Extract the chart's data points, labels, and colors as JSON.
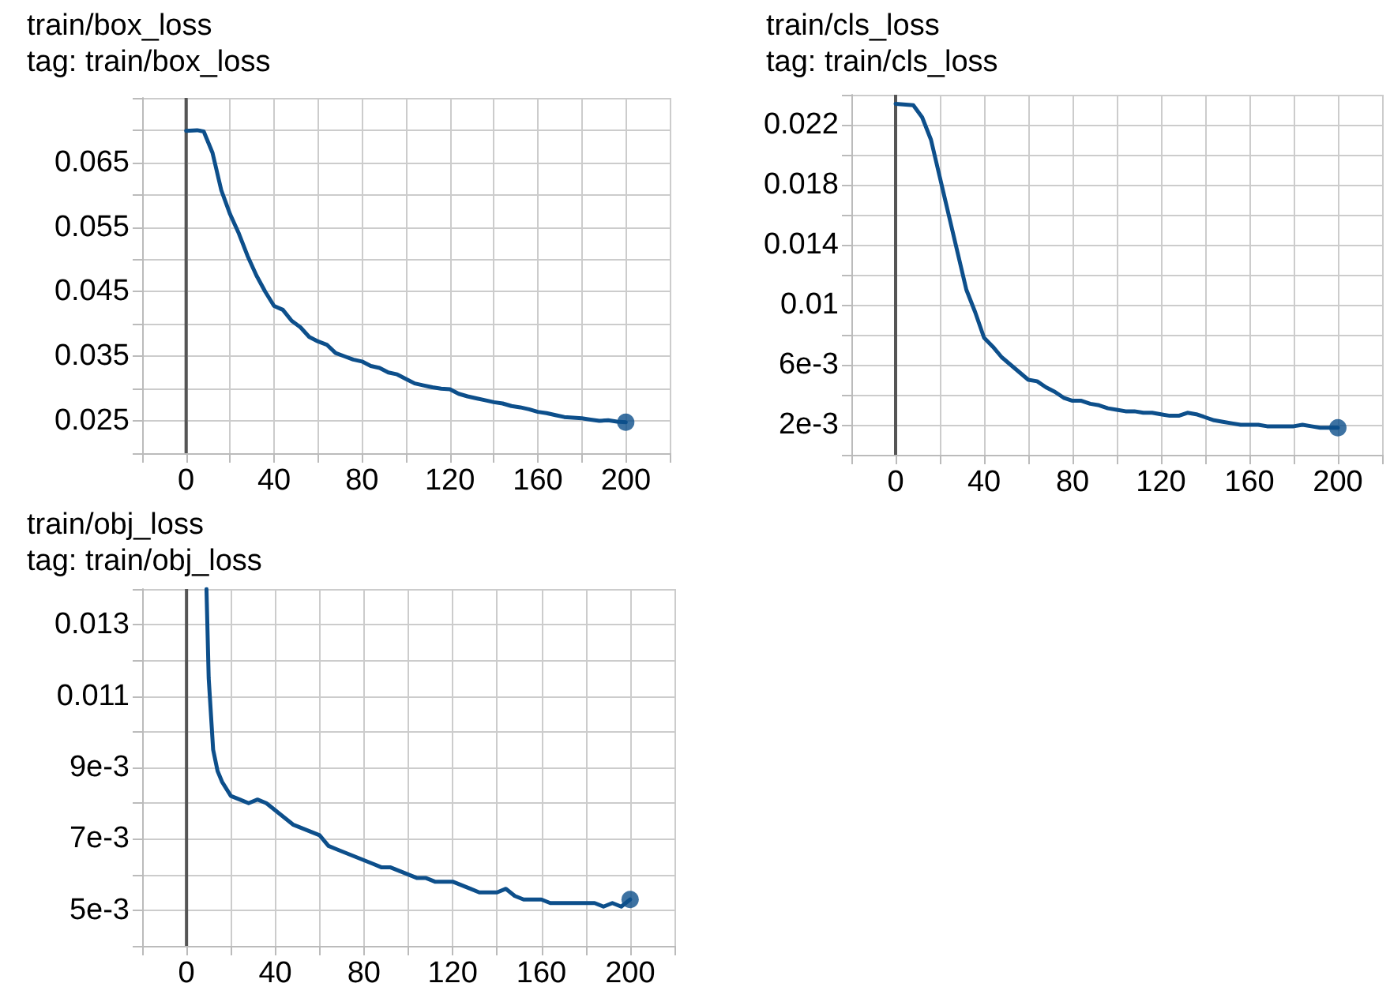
{
  "chart_data": [
    {
      "type": "line",
      "title": "train/box_loss",
      "subtitle": "tag: train/box_loss",
      "grid": true,
      "marker": "none",
      "line_style": "solid",
      "xlim": [
        -20,
        220
      ],
      "ylim": [
        0.02,
        0.075
      ],
      "xticks": [
        {
          "value": -20,
          "label": null
        },
        0,
        {
          "value": 20,
          "label": null
        },
        40,
        {
          "value": 60,
          "label": null
        },
        80,
        {
          "value": 100,
          "label": null
        },
        120,
        {
          "value": 140,
          "label": null
        },
        160,
        {
          "value": 180,
          "label": null
        },
        200,
        {
          "value": 220,
          "label": null
        }
      ],
      "yticks": [
        {
          "value": 0.02,
          "label": null
        },
        0.025,
        {
          "value": 0.03,
          "label": null
        },
        0.035,
        {
          "value": 0.04,
          "label": null
        },
        0.045,
        {
          "value": 0.05,
          "label": null
        },
        0.055,
        {
          "value": 0.06,
          "label": null
        },
        0.065,
        {
          "value": 0.07,
          "label": null
        },
        {
          "value": 0.075,
          "label": null
        }
      ],
      "ref_lines": [
        {
          "axis": "x",
          "value": 0,
          "color": "#555555"
        }
      ],
      "series": [
        {
          "type": "line",
          "color": "#0d4f8b",
          "x": [
            0,
            5,
            8,
            12,
            16,
            20,
            24,
            28,
            32,
            36,
            40,
            44,
            48,
            52,
            56,
            60,
            64,
            68,
            72,
            76,
            80,
            84,
            88,
            92,
            96,
            100,
            104,
            108,
            112,
            116,
            120,
            124,
            128,
            132,
            136,
            140,
            144,
            148,
            152,
            156,
            160,
            164,
            168,
            172,
            176,
            180,
            184,
            188,
            192,
            196,
            200
          ],
          "values": [
            0.0699,
            0.07,
            0.0698,
            0.0665,
            0.0607,
            0.057,
            0.054,
            0.0505,
            0.0475,
            0.045,
            0.0428,
            0.0422,
            0.0405,
            0.0395,
            0.038,
            0.0373,
            0.0368,
            0.0355,
            0.035,
            0.0345,
            0.0342,
            0.0335,
            0.0332,
            0.0325,
            0.0322,
            0.0315,
            0.0308,
            0.0305,
            0.0302,
            0.03,
            0.0299,
            0.0292,
            0.0288,
            0.0285,
            0.0282,
            0.0279,
            0.0277,
            0.0273,
            0.0271,
            0.0268,
            0.0264,
            0.0262,
            0.0259,
            0.0256,
            0.0255,
            0.0254,
            0.0252,
            0.025,
            0.0251,
            0.0249,
            0.0248
          ]
        },
        {
          "type": "scatter",
          "color": "#0d4f8b",
          "marker": "circle",
          "x": [
            200
          ],
          "values": [
            0.0248
          ]
        }
      ]
    },
    {
      "type": "line",
      "title": "train/cls_loss",
      "subtitle": "tag: train/cls_loss",
      "grid": true,
      "marker": "none",
      "line_style": "solid",
      "xlim": [
        -20,
        220
      ],
      "ylim": [
        0,
        0.024
      ],
      "xticks": [
        {
          "value": -20,
          "label": null
        },
        0,
        {
          "value": 20,
          "label": null
        },
        40,
        {
          "value": 60,
          "label": null
        },
        80,
        {
          "value": 100,
          "label": null
        },
        120,
        {
          "value": 140,
          "label": null
        },
        160,
        {
          "value": 180,
          "label": null
        },
        200,
        {
          "value": 220,
          "label": null
        }
      ],
      "yticks": [
        {
          "value": 0,
          "label": null
        },
        {
          "value": 0.002,
          "label": "2e-3"
        },
        {
          "value": 0.004,
          "label": null
        },
        {
          "value": 0.006,
          "label": "6e-3"
        },
        {
          "value": 0.008,
          "label": null
        },
        0.01,
        {
          "value": 0.012,
          "label": null
        },
        0.014,
        {
          "value": 0.016,
          "label": null
        },
        0.018,
        {
          "value": 0.02,
          "label": null
        },
        0.022,
        {
          "value": 0.024,
          "label": null
        }
      ],
      "ref_lines": [
        {
          "axis": "x",
          "value": 0,
          "color": "#555555"
        }
      ],
      "series": [
        {
          "type": "line",
          "color": "#0d4f8b",
          "x": [
            0,
            8,
            12,
            16,
            20,
            24,
            28,
            32,
            36,
            40,
            44,
            48,
            52,
            56,
            60,
            64,
            68,
            72,
            76,
            80,
            84,
            88,
            92,
            96,
            100,
            104,
            108,
            112,
            116,
            120,
            124,
            128,
            132,
            136,
            140,
            144,
            148,
            152,
            156,
            160,
            164,
            168,
            172,
            176,
            180,
            184,
            188,
            192,
            196,
            200
          ],
          "values": [
            0.0234,
            0.0233,
            0.0225,
            0.021,
            0.0185,
            0.016,
            0.0135,
            0.011,
            0.0095,
            0.0078,
            0.0072,
            0.0065,
            0.006,
            0.0055,
            0.005,
            0.0049,
            0.0045,
            0.0042,
            0.0038,
            0.0036,
            0.0036,
            0.0034,
            0.0033,
            0.0031,
            0.003,
            0.0029,
            0.0029,
            0.0028,
            0.0028,
            0.0027,
            0.0026,
            0.0026,
            0.0028,
            0.0027,
            0.0025,
            0.0023,
            0.0022,
            0.0021,
            0.002,
            0.002,
            0.002,
            0.0019,
            0.0019,
            0.0019,
            0.0019,
            0.002,
            0.0019,
            0.0018,
            0.0018,
            0.0018
          ]
        },
        {
          "type": "scatter",
          "color": "#0d4f8b",
          "marker": "circle",
          "x": [
            200
          ],
          "values": [
            0.0018
          ]
        }
      ]
    },
    {
      "type": "line",
      "title": "train/obj_loss",
      "subtitle": "tag: train/obj_loss",
      "grid": true,
      "marker": "none",
      "line_style": "solid",
      "xlim": [
        -20,
        220
      ],
      "ylim": [
        0.004,
        0.014
      ],
      "xticks": [
        {
          "value": -20,
          "label": null
        },
        0,
        {
          "value": 20,
          "label": null
        },
        40,
        {
          "value": 60,
          "label": null
        },
        80,
        {
          "value": 100,
          "label": null
        },
        120,
        {
          "value": 140,
          "label": null
        },
        160,
        {
          "value": 180,
          "label": null
        },
        200,
        {
          "value": 220,
          "label": null
        }
      ],
      "yticks": [
        {
          "value": 0.004,
          "label": null
        },
        {
          "value": 0.005,
          "label": "5e-3"
        },
        {
          "value": 0.006,
          "label": null
        },
        {
          "value": 0.007,
          "label": "7e-3"
        },
        {
          "value": 0.008,
          "label": null
        },
        {
          "value": 0.009,
          "label": "9e-3"
        },
        {
          "value": 0.01,
          "label": null
        },
        0.011,
        {
          "value": 0.012,
          "label": null
        },
        0.013,
        {
          "value": 0.014,
          "label": null
        }
      ],
      "ref_lines": [
        {
          "axis": "x",
          "value": 0,
          "color": "#555555"
        }
      ],
      "series": [
        {
          "type": "line",
          "color": "#0d4f8b",
          "x": [
            9,
            10,
            12,
            14,
            16,
            20,
            24,
            28,
            32,
            36,
            40,
            44,
            48,
            52,
            56,
            60,
            64,
            68,
            72,
            76,
            80,
            84,
            88,
            92,
            96,
            100,
            104,
            108,
            112,
            116,
            120,
            124,
            128,
            132,
            136,
            140,
            144,
            148,
            152,
            156,
            160,
            164,
            168,
            172,
            176,
            180,
            184,
            188,
            192,
            196,
            200
          ],
          "values": [
            0.014,
            0.0115,
            0.0095,
            0.0089,
            0.0086,
            0.0082,
            0.0081,
            0.008,
            0.0081,
            0.008,
            0.0078,
            0.0076,
            0.0074,
            0.0073,
            0.0072,
            0.0071,
            0.0068,
            0.0067,
            0.0066,
            0.0065,
            0.0064,
            0.0063,
            0.0062,
            0.0062,
            0.0061,
            0.006,
            0.0059,
            0.0059,
            0.0058,
            0.0058,
            0.0058,
            0.0057,
            0.0056,
            0.0055,
            0.0055,
            0.0055,
            0.0056,
            0.0054,
            0.0053,
            0.0053,
            0.0053,
            0.0052,
            0.0052,
            0.0052,
            0.0052,
            0.0052,
            0.0052,
            0.0051,
            0.0052,
            0.0051,
            0.0053
          ]
        },
        {
          "type": "scatter",
          "color": "#0d4f8b",
          "marker": "circle",
          "x": [
            200
          ],
          "values": [
            0.0053
          ]
        }
      ]
    }
  ]
}
